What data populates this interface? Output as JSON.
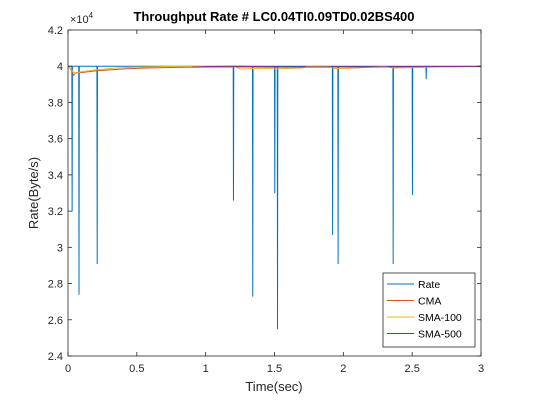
{
  "chart_data": {
    "type": "line",
    "title": "Throughput Rate # LC0.04TI0.09TD0.02BS400",
    "xlabel": "Time(sec)",
    "ylabel": "Rate(Byte/s)",
    "y_exponent_label": "×10",
    "y_exponent_power": "4",
    "xlim": [
      0,
      3
    ],
    "ylim": [
      24000,
      42000
    ],
    "x_ticks": [
      0,
      0.5,
      1,
      1.5,
      2,
      2.5,
      3
    ],
    "x_tick_labels": [
      "0",
      "0.5",
      "1",
      "1.5",
      "2",
      "2.5",
      "3"
    ],
    "y_ticks": [
      24000,
      26000,
      28000,
      30000,
      32000,
      34000,
      36000,
      38000,
      40000,
      42000
    ],
    "y_tick_labels": [
      "2.4",
      "2.6",
      "2.8",
      "3",
      "3.2",
      "3.4",
      "3.6",
      "3.8",
      "4",
      "4.2"
    ],
    "grid": false,
    "legend_position": "bottom-right",
    "series": [
      {
        "name": "Rate",
        "color": "#0072BD",
        "points": [
          [
            0,
            40000
          ],
          [
            0.028,
            40000
          ],
          [
            0.03,
            32000
          ],
          [
            0.032,
            40000
          ],
          [
            0.078,
            40000
          ],
          [
            0.08,
            27400
          ],
          [
            0.082,
            40000
          ],
          [
            0.21,
            40000
          ],
          [
            0.212,
            29100
          ],
          [
            0.214,
            40000
          ],
          [
            1.2,
            40000
          ],
          [
            1.202,
            32600
          ],
          [
            1.204,
            40000
          ],
          [
            1.34,
            40000
          ],
          [
            1.342,
            27300
          ],
          [
            1.344,
            40000
          ],
          [
            1.5,
            40000
          ],
          [
            1.502,
            33000
          ],
          [
            1.504,
            40000
          ],
          [
            1.52,
            40000
          ],
          [
            1.522,
            25500
          ],
          [
            1.524,
            40000
          ],
          [
            1.92,
            40000
          ],
          [
            1.922,
            30700
          ],
          [
            1.924,
            40000
          ],
          [
            1.96,
            40000
          ],
          [
            1.962,
            29100
          ],
          [
            1.964,
            40000
          ],
          [
            2.36,
            40000
          ],
          [
            2.362,
            29100
          ],
          [
            2.364,
            40000
          ],
          [
            2.5,
            40000
          ],
          [
            2.502,
            32900
          ],
          [
            2.504,
            40000
          ],
          [
            2.6,
            40000
          ],
          [
            2.602,
            39300
          ],
          [
            2.604,
            40000
          ],
          [
            3,
            40000
          ]
        ]
      },
      {
        "name": "CMA",
        "color": "#D95319",
        "points": [
          [
            0.005,
            40000
          ],
          [
            0.03,
            39700
          ],
          [
            0.04,
            39500
          ],
          [
            0.06,
            39650
          ],
          [
            0.1,
            39650
          ],
          [
            0.2,
            39740
          ],
          [
            0.4,
            39850
          ],
          [
            0.6,
            39910
          ],
          [
            0.9,
            39950
          ],
          [
            1.2,
            39960
          ],
          [
            1.5,
            39950
          ],
          [
            2,
            39960
          ],
          [
            2.5,
            39970
          ],
          [
            3,
            39975
          ]
        ]
      },
      {
        "name": "SMA-100",
        "color": "#EDB120",
        "points": [
          [
            0.005,
            40000
          ],
          [
            0.03,
            39750
          ],
          [
            0.05,
            39600
          ],
          [
            0.1,
            39700
          ],
          [
            0.2,
            39800
          ],
          [
            0.35,
            39900
          ],
          [
            0.5,
            39950
          ],
          [
            0.8,
            40000
          ],
          [
            1.2,
            40000
          ],
          [
            1.25,
            39850
          ],
          [
            1.32,
            39860
          ],
          [
            1.36,
            39880
          ],
          [
            1.46,
            39880
          ],
          [
            1.5,
            39850
          ],
          [
            1.6,
            39880
          ],
          [
            1.7,
            39900
          ],
          [
            1.74,
            40000
          ],
          [
            1.9,
            40000
          ],
          [
            1.93,
            39870
          ],
          [
            2.1,
            39900
          ],
          [
            2.3,
            40000
          ],
          [
            2.36,
            39900
          ],
          [
            2.6,
            39940
          ],
          [
            3,
            40000
          ]
        ]
      },
      {
        "name": "SMA-500",
        "color": "#7E2F8E",
        "points": [
          [
            0.9,
            39950
          ],
          [
            1.0,
            39980
          ],
          [
            1.2,
            40000
          ],
          [
            1.4,
            39980
          ],
          [
            1.6,
            39960
          ],
          [
            1.8,
            39960
          ],
          [
            2.0,
            39970
          ],
          [
            2.2,
            39960
          ],
          [
            2.4,
            39970
          ],
          [
            2.6,
            39980
          ],
          [
            2.8,
            39985
          ],
          [
            3,
            39990
          ]
        ]
      }
    ]
  }
}
